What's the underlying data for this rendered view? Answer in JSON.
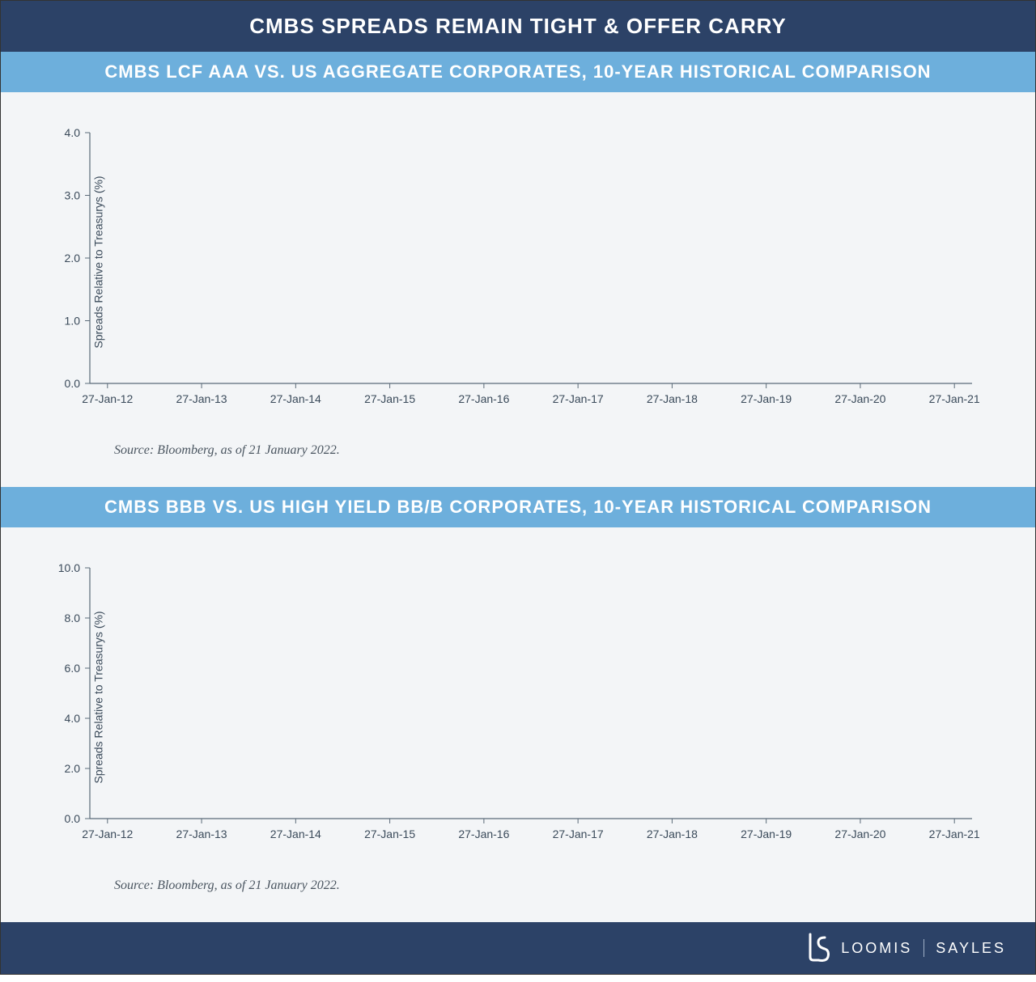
{
  "colors": {
    "header_bg": "#2c4267",
    "subheader_bg": "#6dafdc",
    "panel_bg": "#f3f5f7",
    "axis_color": "#5a6a78",
    "tick_text": "#3a4a5a",
    "source_text": "#4a5560",
    "logo_text": "#ffffff"
  },
  "main_title": "CMBS SPREADS REMAIN TIGHT & OFFER CARRY",
  "chart1": {
    "type": "line",
    "title": "CMBS LCF AAA VS. US AGGREGATE CORPORATES, 10-YEAR HISTORICAL COMPARISON",
    "ylabel": "Spreads Relative to Treasurys (%)",
    "ylim": [
      0,
      4
    ],
    "ytick_step": 1,
    "yticks": [
      "0.0",
      "1.0",
      "2.0",
      "3.0",
      "4.0"
    ],
    "xticks": [
      "27-Jan-12",
      "27-Jan-13",
      "27-Jan-14",
      "27-Jan-15",
      "27-Jan-16",
      "27-Jan-17",
      "27-Jan-18",
      "27-Jan-19",
      "27-Jan-20",
      "27-Jan-21"
    ],
    "series": [],
    "source": "Source: Bloomberg, as of 21 January 2022.",
    "tick_fontsize": 14,
    "label_fontsize": 14,
    "title_fontsize": 22
  },
  "chart2": {
    "type": "line",
    "title": "CMBS BBB VS. US HIGH YIELD BB/B CORPORATES, 10-YEAR HISTORICAL COMPARISON",
    "ylabel": "Spreads Relative to Treasurys (%)",
    "ylim": [
      0,
      10
    ],
    "ytick_step": 2,
    "yticks": [
      "0.0",
      "2.0",
      "4.0",
      "6.0",
      "8.0",
      "10.0"
    ],
    "xticks": [
      "27-Jan-12",
      "27-Jan-13",
      "27-Jan-14",
      "27-Jan-15",
      "27-Jan-16",
      "27-Jan-17",
      "27-Jan-18",
      "27-Jan-19",
      "27-Jan-20",
      "27-Jan-21"
    ],
    "series": [],
    "source": "Source: Bloomberg, as of 21 January 2022.",
    "tick_fontsize": 14,
    "label_fontsize": 14,
    "title_fontsize": 22
  },
  "footer": {
    "brand_left": "LOOMIS",
    "brand_right": "SAYLES"
  }
}
